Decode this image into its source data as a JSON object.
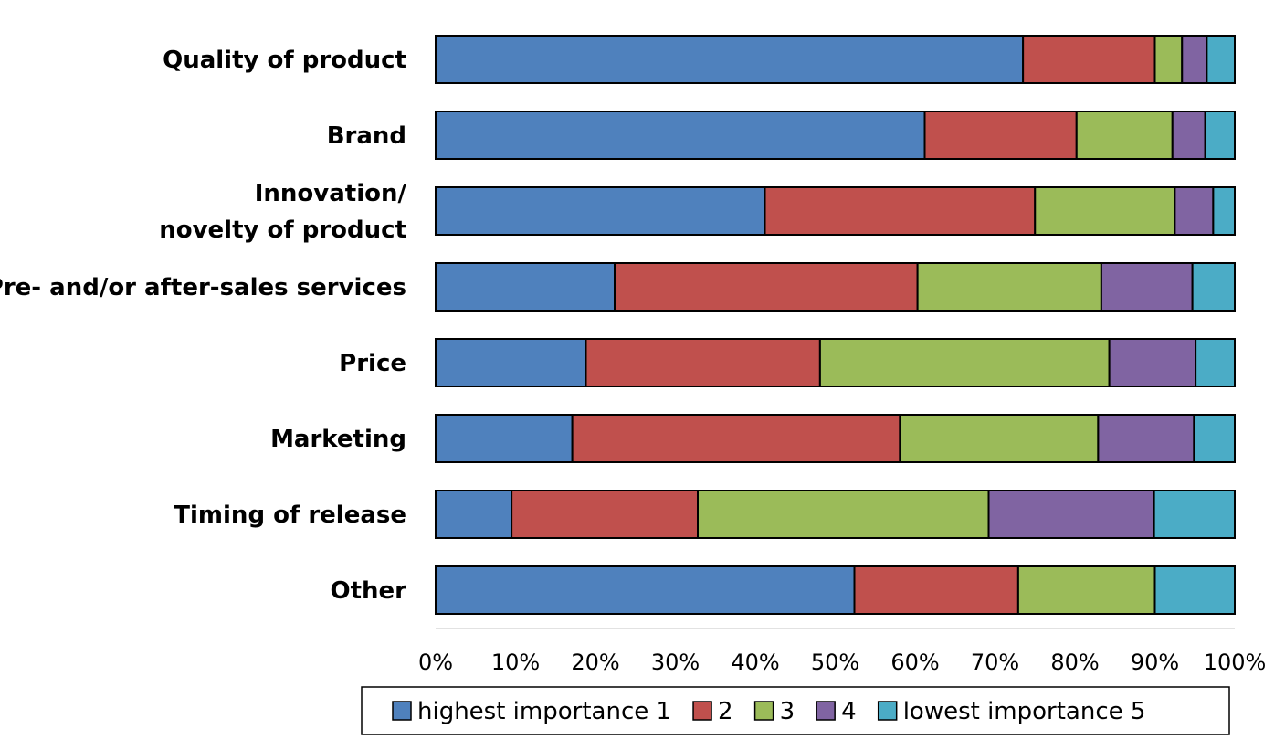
{
  "chart_data": {
    "type": "bar",
    "orientation": "horizontal",
    "stacked": "percent",
    "title": "",
    "xlabel": "",
    "ylabel": "",
    "xlim": [
      0,
      100
    ],
    "x_ticks": [
      "0%",
      "10%",
      "20%",
      "30%",
      "40%",
      "50%",
      "60%",
      "70%",
      "80%",
      "90%",
      "100%"
    ],
    "grid": false,
    "legend_position": "bottom",
    "categories": [
      "Quality of product",
      "Brand",
      "Innovation/ novelty of product",
      "Pre- and/or after-sales services",
      "Price",
      "Marketing",
      "Timing of release",
      "Other"
    ],
    "category_label_lines": [
      [
        "Quality of product"
      ],
      [
        "Brand"
      ],
      [
        "Innovation/",
        "novelty of product"
      ],
      [
        "Pre- and/or after-sales services"
      ],
      [
        "Price"
      ],
      [
        "Marketing"
      ],
      [
        "Timing of release"
      ],
      [
        "Other"
      ]
    ],
    "series": [
      {
        "name": "highest importance 1",
        "color": "#4F81BD",
        "values": [
          73.5,
          61.2,
          41.2,
          22.4,
          18.8,
          17.1,
          9.5,
          52.4
        ]
      },
      {
        "name": "2",
        "color": "#C0504D",
        "values": [
          16.5,
          19.0,
          33.8,
          37.9,
          29.3,
          41.0,
          23.3,
          20.5
        ]
      },
      {
        "name": "3",
        "color": "#9BBB59",
        "values": [
          3.4,
          12.0,
          17.5,
          23.0,
          36.2,
          24.8,
          36.4,
          17.1
        ]
      },
      {
        "name": "4",
        "color": "#8064A2",
        "values": [
          3.1,
          4.1,
          4.8,
          11.4,
          10.8,
          12.0,
          20.7,
          0
        ]
      },
      {
        "name": "lowest importance 5",
        "color": "#4BACC6",
        "values": [
          3.5,
          3.7,
          2.7,
          5.3,
          4.9,
          5.1,
          10.1,
          10.0
        ]
      }
    ]
  }
}
